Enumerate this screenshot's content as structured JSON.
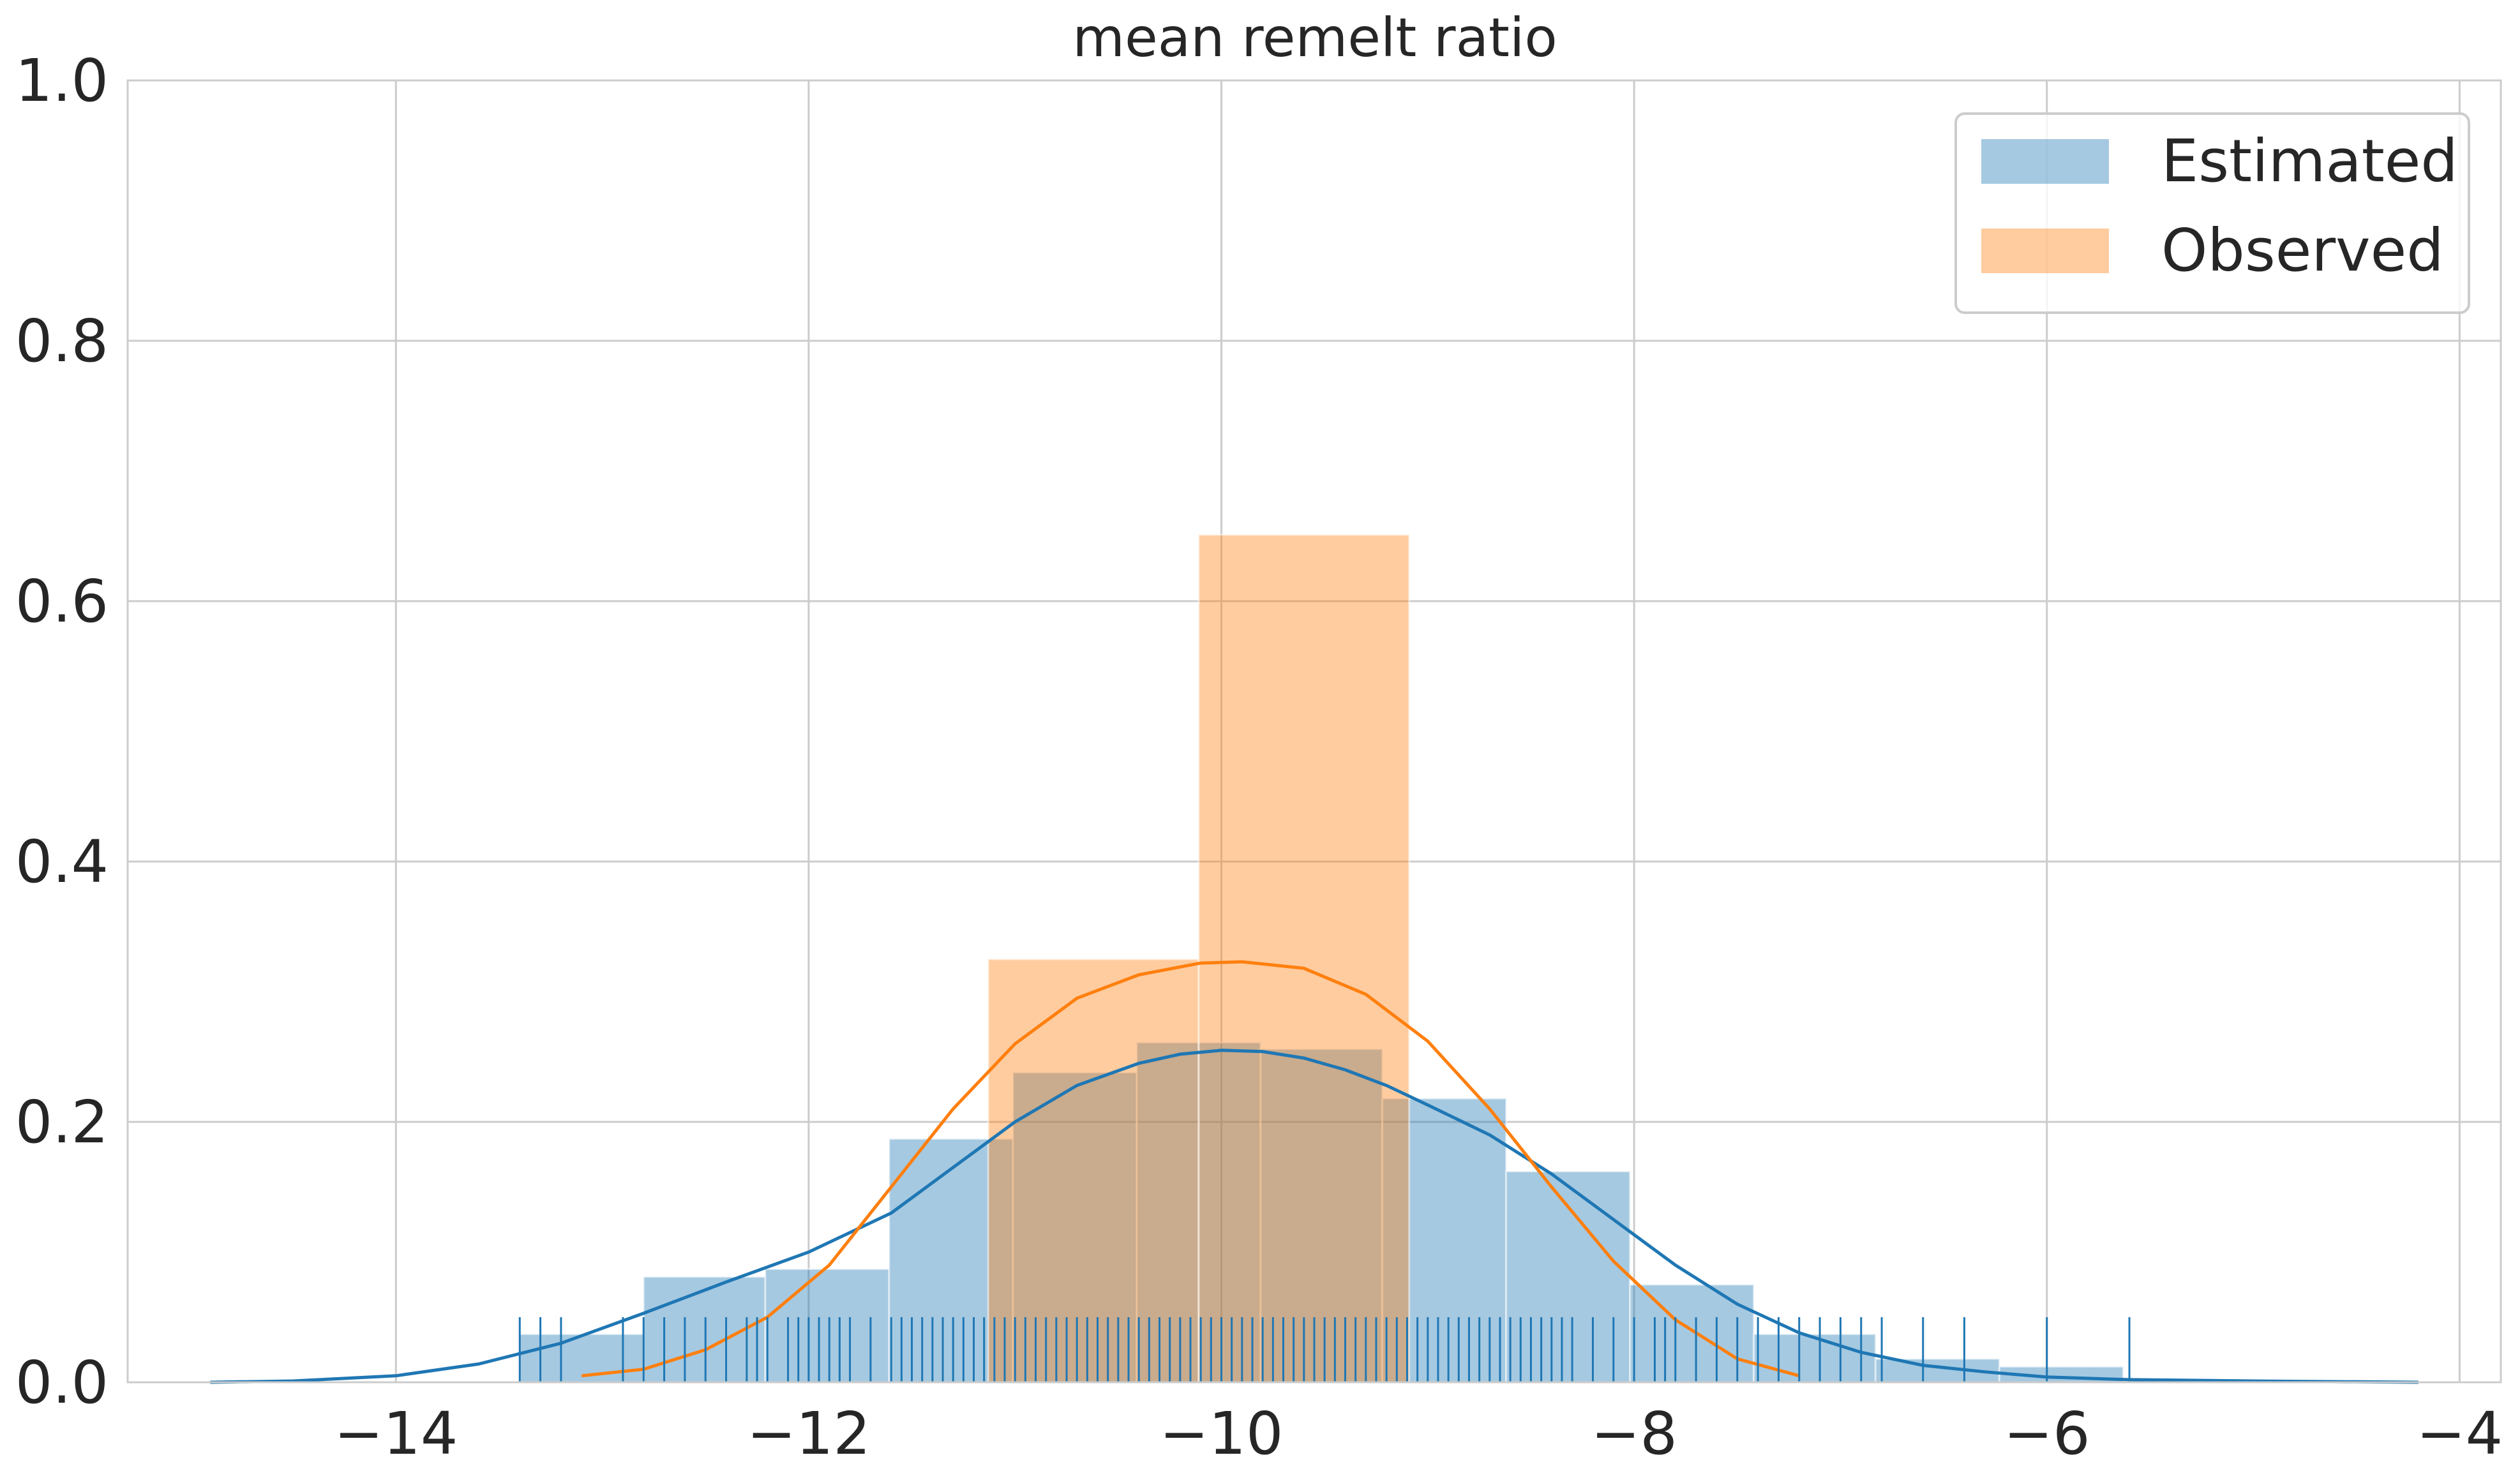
{
  "chart_data": {
    "type": "histogram",
    "title": "mean remelt ratio",
    "xlim": [
      -15.3,
      -3.8
    ],
    "ylim": [
      0,
      1.0
    ],
    "xticks": [
      -14,
      -12,
      -10,
      -8,
      -6,
      -4
    ],
    "xtick_labels": [
      "−14",
      "−12",
      "−10",
      "−8",
      "−6",
      "−4"
    ],
    "yticks": [
      0.0,
      0.2,
      0.4,
      0.6,
      0.8,
      1.0
    ],
    "ytick_labels": [
      "0.0",
      "0.2",
      "0.4",
      "0.6",
      "0.8",
      "1.0"
    ],
    "grid": true,
    "legend_position": "top-right",
    "colors": {
      "estimated": "#1f77b4",
      "observed": "#ff7f0e",
      "grid": "#cccccc",
      "text": "#262626"
    },
    "series": [
      {
        "name": "Estimated",
        "bins": [
          {
            "x0": -13.4,
            "x1": -12.8,
            "height": 0.037
          },
          {
            "x0": -12.8,
            "x1": -12.21,
            "height": 0.081
          },
          {
            "x0": -12.21,
            "x1": -11.61,
            "height": 0.087
          },
          {
            "x0": -11.61,
            "x1": -11.01,
            "height": 0.187
          },
          {
            "x0": -11.01,
            "x1": -10.41,
            "height": 0.238
          },
          {
            "x0": -10.41,
            "x1": -9.81,
            "height": 0.261
          },
          {
            "x0": -9.81,
            "x1": -9.22,
            "height": 0.256
          },
          {
            "x0": -9.22,
            "x1": -8.62,
            "height": 0.218
          },
          {
            "x0": -8.62,
            "x1": -8.02,
            "height": 0.162
          },
          {
            "x0": -8.02,
            "x1": -7.42,
            "height": 0.075
          },
          {
            "x0": -7.42,
            "x1": -6.83,
            "height": 0.037
          },
          {
            "x0": -6.83,
            "x1": -6.23,
            "height": 0.018
          },
          {
            "x0": -6.23,
            "x1": -5.63,
            "height": 0.012
          }
        ],
        "kde": [
          [
            -14.9,
            0.0
          ],
          [
            -14.5,
            0.001
          ],
          [
            -14.0,
            0.005
          ],
          [
            -13.6,
            0.014
          ],
          [
            -13.2,
            0.03
          ],
          [
            -12.8,
            0.053
          ],
          [
            -12.4,
            0.077
          ],
          [
            -12.0,
            0.1
          ],
          [
            -11.6,
            0.13
          ],
          [
            -11.3,
            0.165
          ],
          [
            -11.0,
            0.2
          ],
          [
            -10.7,
            0.228
          ],
          [
            -10.4,
            0.245
          ],
          [
            -10.2,
            0.252
          ],
          [
            -10.0,
            0.255
          ],
          [
            -9.8,
            0.254
          ],
          [
            -9.6,
            0.249
          ],
          [
            -9.4,
            0.24
          ],
          [
            -9.2,
            0.228
          ],
          [
            -9.0,
            0.213
          ],
          [
            -8.7,
            0.19
          ],
          [
            -8.4,
            0.16
          ],
          [
            -8.1,
            0.125
          ],
          [
            -7.8,
            0.09
          ],
          [
            -7.5,
            0.06
          ],
          [
            -7.2,
            0.038
          ],
          [
            -6.9,
            0.023
          ],
          [
            -6.6,
            0.013
          ],
          [
            -6.3,
            0.008
          ],
          [
            -6.0,
            0.004
          ],
          [
            -5.6,
            0.002
          ],
          [
            -5.0,
            0.001
          ],
          [
            -4.2,
            0.0
          ]
        ],
        "rug": [
          -13.4,
          -13.3,
          -13.2,
          -12.9,
          -12.8,
          -12.7,
          -12.6,
          -12.5,
          -12.4,
          -12.3,
          -12.25,
          -12.2,
          -12.1,
          -12.05,
          -12.0,
          -11.95,
          -11.9,
          -11.85,
          -11.8,
          -11.7,
          -11.6,
          -11.55,
          -11.5,
          -11.45,
          -11.4,
          -11.35,
          -11.3,
          -11.25,
          -11.2,
          -11.15,
          -11.1,
          -11.05,
          -11.0,
          -10.95,
          -10.9,
          -10.85,
          -10.8,
          -10.75,
          -10.7,
          -10.65,
          -10.6,
          -10.55,
          -10.5,
          -10.45,
          -10.4,
          -10.35,
          -10.3,
          -10.25,
          -10.2,
          -10.15,
          -10.1,
          -10.05,
          -10.0,
          -9.95,
          -9.9,
          -9.85,
          -9.8,
          -9.75,
          -9.7,
          -9.65,
          -9.6,
          -9.55,
          -9.5,
          -9.45,
          -9.4,
          -9.35,
          -9.3,
          -9.25,
          -9.2,
          -9.15,
          -9.1,
          -9.05,
          -9.0,
          -8.95,
          -8.9,
          -8.85,
          -8.8,
          -8.75,
          -8.7,
          -8.65,
          -8.6,
          -8.55,
          -8.5,
          -8.45,
          -8.4,
          -8.35,
          -8.3,
          -8.2,
          -8.1,
          -8.0,
          -7.9,
          -7.85,
          -7.8,
          -7.7,
          -7.6,
          -7.5,
          -7.4,
          -7.3,
          -7.2,
          -7.1,
          -7.0,
          -6.9,
          -6.8,
          -6.6,
          -6.4,
          -6.0,
          -5.6
        ]
      },
      {
        "name": "Observed",
        "bins": [
          {
            "x0": -11.13,
            "x1": -10.11,
            "height": 0.325
          },
          {
            "x0": -10.11,
            "x1": -9.09,
            "height": 0.651
          }
        ],
        "kde": [
          [
            -13.1,
            0.005
          ],
          [
            -12.8,
            0.01
          ],
          [
            -12.5,
            0.025
          ],
          [
            -12.2,
            0.05
          ],
          [
            -11.9,
            0.09
          ],
          [
            -11.6,
            0.15
          ],
          [
            -11.3,
            0.21
          ],
          [
            -11.0,
            0.26
          ],
          [
            -10.7,
            0.295
          ],
          [
            -10.4,
            0.313
          ],
          [
            -10.1,
            0.322
          ],
          [
            -9.9,
            0.323
          ],
          [
            -9.6,
            0.318
          ],
          [
            -9.3,
            0.298
          ],
          [
            -9.0,
            0.262
          ],
          [
            -8.7,
            0.21
          ],
          [
            -8.4,
            0.15
          ],
          [
            -8.1,
            0.093
          ],
          [
            -7.8,
            0.048
          ],
          [
            -7.5,
            0.018
          ],
          [
            -7.2,
            0.005
          ]
        ]
      }
    ]
  }
}
